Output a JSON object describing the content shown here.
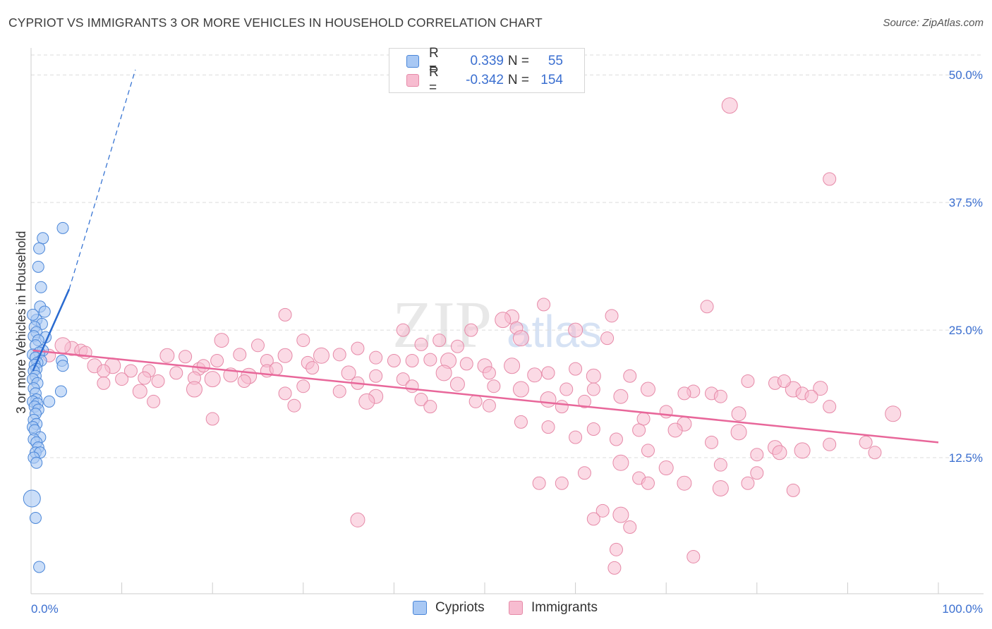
{
  "title": "CYPRIOT VS IMMIGRANTS 3 OR MORE VEHICLES IN HOUSEHOLD CORRELATION CHART",
  "source": "Source: ZipAtlas.com",
  "watermark": {
    "zip": "ZIP",
    "atlas": "atlas"
  },
  "legend": {
    "r_label": "R =",
    "n_label": "N =",
    "cypriots": {
      "r": "0.339",
      "n": "55"
    },
    "immigrants": {
      "r": "-0.342",
      "n": "154"
    }
  },
  "bottom_legend": {
    "cypriots": "Cypriots",
    "immigrants": "Immigrants"
  },
  "colors": {
    "cypriots_fill": "#a8c8f4",
    "cypriots_stroke": "#4a86d8",
    "cypriots_line": "#2a6bd0",
    "immigrants_fill": "#f7bcd0",
    "immigrants_stroke": "#e68aa8",
    "immigrants_line": "#e8679a",
    "tick_label": "#3b6fd0",
    "grid": "#dcdcdc"
  },
  "chart_data": {
    "type": "scatter",
    "title": "CYPRIOT VS IMMIGRANTS 3 OR MORE VEHICLES IN HOUSEHOLD CORRELATION CHART",
    "xlabel": "",
    "ylabel": "3 or more Vehicles in Household",
    "xlim": [
      0,
      100
    ],
    "ylim": [
      0,
      52.5
    ],
    "x_tick_labels": [
      "0.0%",
      "100.0%"
    ],
    "y_ticks": [
      12.5,
      25.0,
      37.5,
      50.0
    ],
    "y_tick_labels": [
      "12.5%",
      "25.0%",
      "37.5%",
      "50.0%"
    ],
    "grid": "horizontal dashed",
    "legend_placement": "top-center",
    "series": [
      {
        "name": "Cypriots",
        "r": 0.339,
        "n": 55,
        "trend": {
          "x": [
            0.2,
            4.2
          ],
          "y": [
            21.0,
            29.0
          ],
          "extended_x": [
            4.2,
            11.5
          ],
          "extended_y": [
            29.0,
            50.5
          ]
        },
        "points": [
          [
            3.5,
            35.0
          ],
          [
            1.3,
            34.0
          ],
          [
            0.9,
            33.0
          ],
          [
            0.8,
            31.2
          ],
          [
            1.1,
            29.2
          ],
          [
            1.0,
            27.3
          ],
          [
            1.5,
            26.8
          ],
          [
            0.6,
            26.0
          ],
          [
            1.2,
            25.6
          ],
          [
            0.4,
            25.3
          ],
          [
            0.6,
            24.8
          ],
          [
            0.3,
            24.4
          ],
          [
            1.6,
            24.3
          ],
          [
            0.8,
            24.0
          ],
          [
            0.5,
            23.5
          ],
          [
            1.3,
            23.0
          ],
          [
            0.9,
            22.8
          ],
          [
            0.2,
            22.6
          ],
          [
            0.5,
            22.3
          ],
          [
            1.1,
            22.0
          ],
          [
            3.4,
            22.0
          ],
          [
            0.7,
            21.8
          ],
          [
            0.4,
            21.6
          ],
          [
            3.5,
            21.5
          ],
          [
            0.6,
            21.2
          ],
          [
            0.3,
            21.0
          ],
          [
            0.5,
            20.5
          ],
          [
            0.2,
            20.2
          ],
          [
            0.7,
            19.8
          ],
          [
            0.3,
            19.3
          ],
          [
            3.3,
            19.0
          ],
          [
            0.5,
            18.8
          ],
          [
            0.6,
            18.2
          ],
          [
            0.2,
            18.0
          ],
          [
            2.0,
            18.0
          ],
          [
            0.7,
            17.8
          ],
          [
            0.4,
            17.5
          ],
          [
            0.8,
            17.2
          ],
          [
            0.5,
            16.8
          ],
          [
            0.3,
            16.2
          ],
          [
            0.6,
            15.8
          ],
          [
            0.2,
            15.5
          ],
          [
            0.4,
            15.2
          ],
          [
            1.0,
            14.5
          ],
          [
            0.3,
            14.3
          ],
          [
            0.6,
            14.0
          ],
          [
            0.8,
            13.5
          ],
          [
            0.5,
            13.0
          ],
          [
            1.0,
            13.0
          ],
          [
            0.3,
            12.5
          ],
          [
            0.6,
            12.0
          ],
          [
            0.1,
            8.5
          ],
          [
            0.5,
            6.6
          ],
          [
            0.9,
            1.8
          ],
          [
            0.2,
            26.5
          ]
        ]
      },
      {
        "name": "Immigrants",
        "r": -0.342,
        "n": 154,
        "trend": {
          "x": [
            0.2,
            100
          ],
          "y": [
            23.0,
            14.0
          ]
        },
        "points": [
          [
            77,
            47.0
          ],
          [
            88,
            39.8
          ],
          [
            56.5,
            27.5
          ],
          [
            74.5,
            27.3
          ],
          [
            28,
            26.5
          ],
          [
            53,
            26.3
          ],
          [
            64,
            26.4
          ],
          [
            52,
            26.0
          ],
          [
            48.5,
            25.0
          ],
          [
            41,
            25.0
          ],
          [
            60,
            25.0
          ],
          [
            53.5,
            25.2
          ],
          [
            63.5,
            24.2
          ],
          [
            45,
            24.0
          ],
          [
            54,
            24.2
          ],
          [
            21,
            24.0
          ],
          [
            30,
            24.0
          ],
          [
            25,
            23.5
          ],
          [
            43,
            23.6
          ],
          [
            47,
            23.4
          ],
          [
            4.5,
            23.2
          ],
          [
            3.5,
            23.5
          ],
          [
            5.5,
            23.0
          ],
          [
            6.0,
            22.8
          ],
          [
            2.0,
            22.5
          ],
          [
            28,
            22.5
          ],
          [
            34,
            22.6
          ],
          [
            36,
            23.2
          ],
          [
            32,
            22.5
          ],
          [
            23,
            22.6
          ],
          [
            15,
            22.5
          ],
          [
            17,
            22.4
          ],
          [
            40,
            22.0
          ],
          [
            42,
            22.0
          ],
          [
            38,
            22.3
          ],
          [
            46,
            22.0
          ],
          [
            20.5,
            22.0
          ],
          [
            26,
            22.0
          ],
          [
            30.5,
            21.8
          ],
          [
            44,
            22.1
          ],
          [
            50,
            21.5
          ],
          [
            48,
            21.7
          ],
          [
            53,
            21.5
          ],
          [
            57,
            20.8
          ],
          [
            60,
            21.2
          ],
          [
            62,
            20.5
          ],
          [
            66,
            20.5
          ],
          [
            11,
            21.0
          ],
          [
            13,
            21.0
          ],
          [
            9,
            21.5
          ],
          [
            7,
            21.5
          ],
          [
            8,
            21.0
          ],
          [
            16,
            20.8
          ],
          [
            18.5,
            21.2
          ],
          [
            19,
            21.5
          ],
          [
            22,
            20.6
          ],
          [
            24,
            20.5
          ],
          [
            26,
            21.0
          ],
          [
            27,
            21.2
          ],
          [
            31,
            21.3
          ],
          [
            35,
            20.8
          ],
          [
            38,
            20.5
          ],
          [
            41,
            20.2
          ],
          [
            45.5,
            20.8
          ],
          [
            50.5,
            20.8
          ],
          [
            55.5,
            20.6
          ],
          [
            12.5,
            20.3
          ],
          [
            10.0,
            20.2
          ],
          [
            14,
            20.0
          ],
          [
            18,
            20.3
          ],
          [
            20,
            20.2
          ],
          [
            23.5,
            20.0
          ],
          [
            30,
            19.5
          ],
          [
            36,
            19.8
          ],
          [
            42,
            19.5
          ],
          [
            47,
            19.7
          ],
          [
            51,
            19.5
          ],
          [
            54,
            19.2
          ],
          [
            59,
            19.2
          ],
          [
            62,
            19.2
          ],
          [
            68,
            19.2
          ],
          [
            73,
            19.0
          ],
          [
            75,
            18.8
          ],
          [
            82,
            19.8
          ],
          [
            84,
            19.2
          ],
          [
            87,
            19.3
          ],
          [
            79,
            20.0
          ],
          [
            83,
            20.0
          ],
          [
            85,
            18.8
          ],
          [
            86,
            18.5
          ],
          [
            12,
            19.0
          ],
          [
            18,
            19.2
          ],
          [
            8,
            19.8
          ],
          [
            28,
            18.8
          ],
          [
            34,
            19.0
          ],
          [
            38,
            18.5
          ],
          [
            43,
            18.2
          ],
          [
            49,
            18.0
          ],
          [
            57,
            18.2
          ],
          [
            61,
            18.0
          ],
          [
            65,
            18.5
          ],
          [
            72,
            18.8
          ],
          [
            76,
            18.5
          ],
          [
            13.5,
            18.0
          ],
          [
            29,
            17.6
          ],
          [
            37,
            18.0
          ],
          [
            44,
            17.5
          ],
          [
            50.5,
            17.6
          ],
          [
            58.5,
            17.5
          ],
          [
            70,
            17.0
          ],
          [
            78,
            16.8
          ],
          [
            88,
            17.5
          ],
          [
            95,
            16.8
          ],
          [
            20,
            16.3
          ],
          [
            67.5,
            16.3
          ],
          [
            72,
            15.8
          ],
          [
            57,
            15.5
          ],
          [
            62,
            15.3
          ],
          [
            67,
            15.2
          ],
          [
            78,
            15.0
          ],
          [
            71,
            15.2
          ],
          [
            54,
            16.0
          ],
          [
            60,
            14.5
          ],
          [
            64.5,
            14.3
          ],
          [
            75,
            14.0
          ],
          [
            82,
            13.5
          ],
          [
            85,
            13.2
          ],
          [
            88,
            13.8
          ],
          [
            92,
            14.0
          ],
          [
            68,
            13.2
          ],
          [
            82.5,
            13.0
          ],
          [
            93,
            13.0
          ],
          [
            80,
            12.8
          ],
          [
            65,
            12.0
          ],
          [
            76,
            11.8
          ],
          [
            70,
            11.5
          ],
          [
            61,
            11.0
          ],
          [
            67,
            10.5
          ],
          [
            80,
            11.0
          ],
          [
            79,
            10.0
          ],
          [
            76,
            9.5
          ],
          [
            84,
            9.3
          ],
          [
            56,
            10.0
          ],
          [
            58.5,
            10.0
          ],
          [
            68,
            10.0
          ],
          [
            72,
            10.0
          ],
          [
            63,
            7.3
          ],
          [
            65,
            6.9
          ],
          [
            66,
            5.7
          ],
          [
            62,
            6.5
          ],
          [
            36,
            6.4
          ],
          [
            64.5,
            3.5
          ],
          [
            73,
            2.8
          ],
          [
            64.3,
            1.7
          ]
        ]
      }
    ]
  }
}
